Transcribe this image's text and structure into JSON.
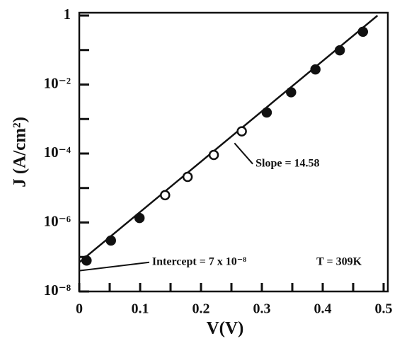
{
  "chart_data": {
    "type": "scatter",
    "x_label": "V(V)",
    "y_label": "J (A/cm²)",
    "log_y": true,
    "xlim": [
      0,
      0.5
    ],
    "ylim": [
      1e-08,
      1
    ],
    "xticks": [
      0,
      0.1,
      0.2,
      0.3,
      0.4,
      0.5
    ],
    "xminor": [
      0.05,
      0.15,
      0.25,
      0.35,
      0.45
    ],
    "yticks": [
      {
        "value": 1e-08,
        "label": "10⁻⁸"
      },
      {
        "value": 1e-06,
        "label": "10⁻⁶"
      },
      {
        "value": 0.0001,
        "label": "10⁻⁴"
      },
      {
        "value": 0.01,
        "label": "10⁻²"
      },
      1
    ],
    "yminor": [
      1e-07,
      1e-05,
      0.001,
      0.1
    ],
    "color": "#111111",
    "series": [
      {
        "marker": "filled",
        "x": [
          0.012,
          0.052,
          0.099,
          0.308,
          0.348,
          0.388,
          0.428,
          0.466
        ],
        "values": [
          7.9e-08,
          3e-07,
          1.35e-06,
          0.00155,
          0.006,
          0.0275,
          0.098,
          0.34
        ]
      },
      {
        "marker": "open",
        "x": [
          0.141,
          0.178,
          0.221,
          0.267
        ],
        "values": [
          6.2e-06,
          2.1e-05,
          9.1e-05,
          0.00044
        ]
      },
      {
        "marker": "line",
        "x": [
          0,
          0.49
        ],
        "values": [
          7e-08,
          1
        ]
      }
    ],
    "annotations": [
      {
        "text": "Slope = 14.58",
        "x": 0.285,
        "y": 5e-05,
        "to_x": 0.255,
        "to_y": 0.0002
      },
      {
        "text": "Intercept = 7 x 10⁻⁸",
        "x": 0.115,
        "y": 7e-08,
        "to_x": 0,
        "to_y": 4e-08
      },
      {
        "text": "T = 309K",
        "x": 0.385,
        "y": 7e-08
      }
    ]
  }
}
